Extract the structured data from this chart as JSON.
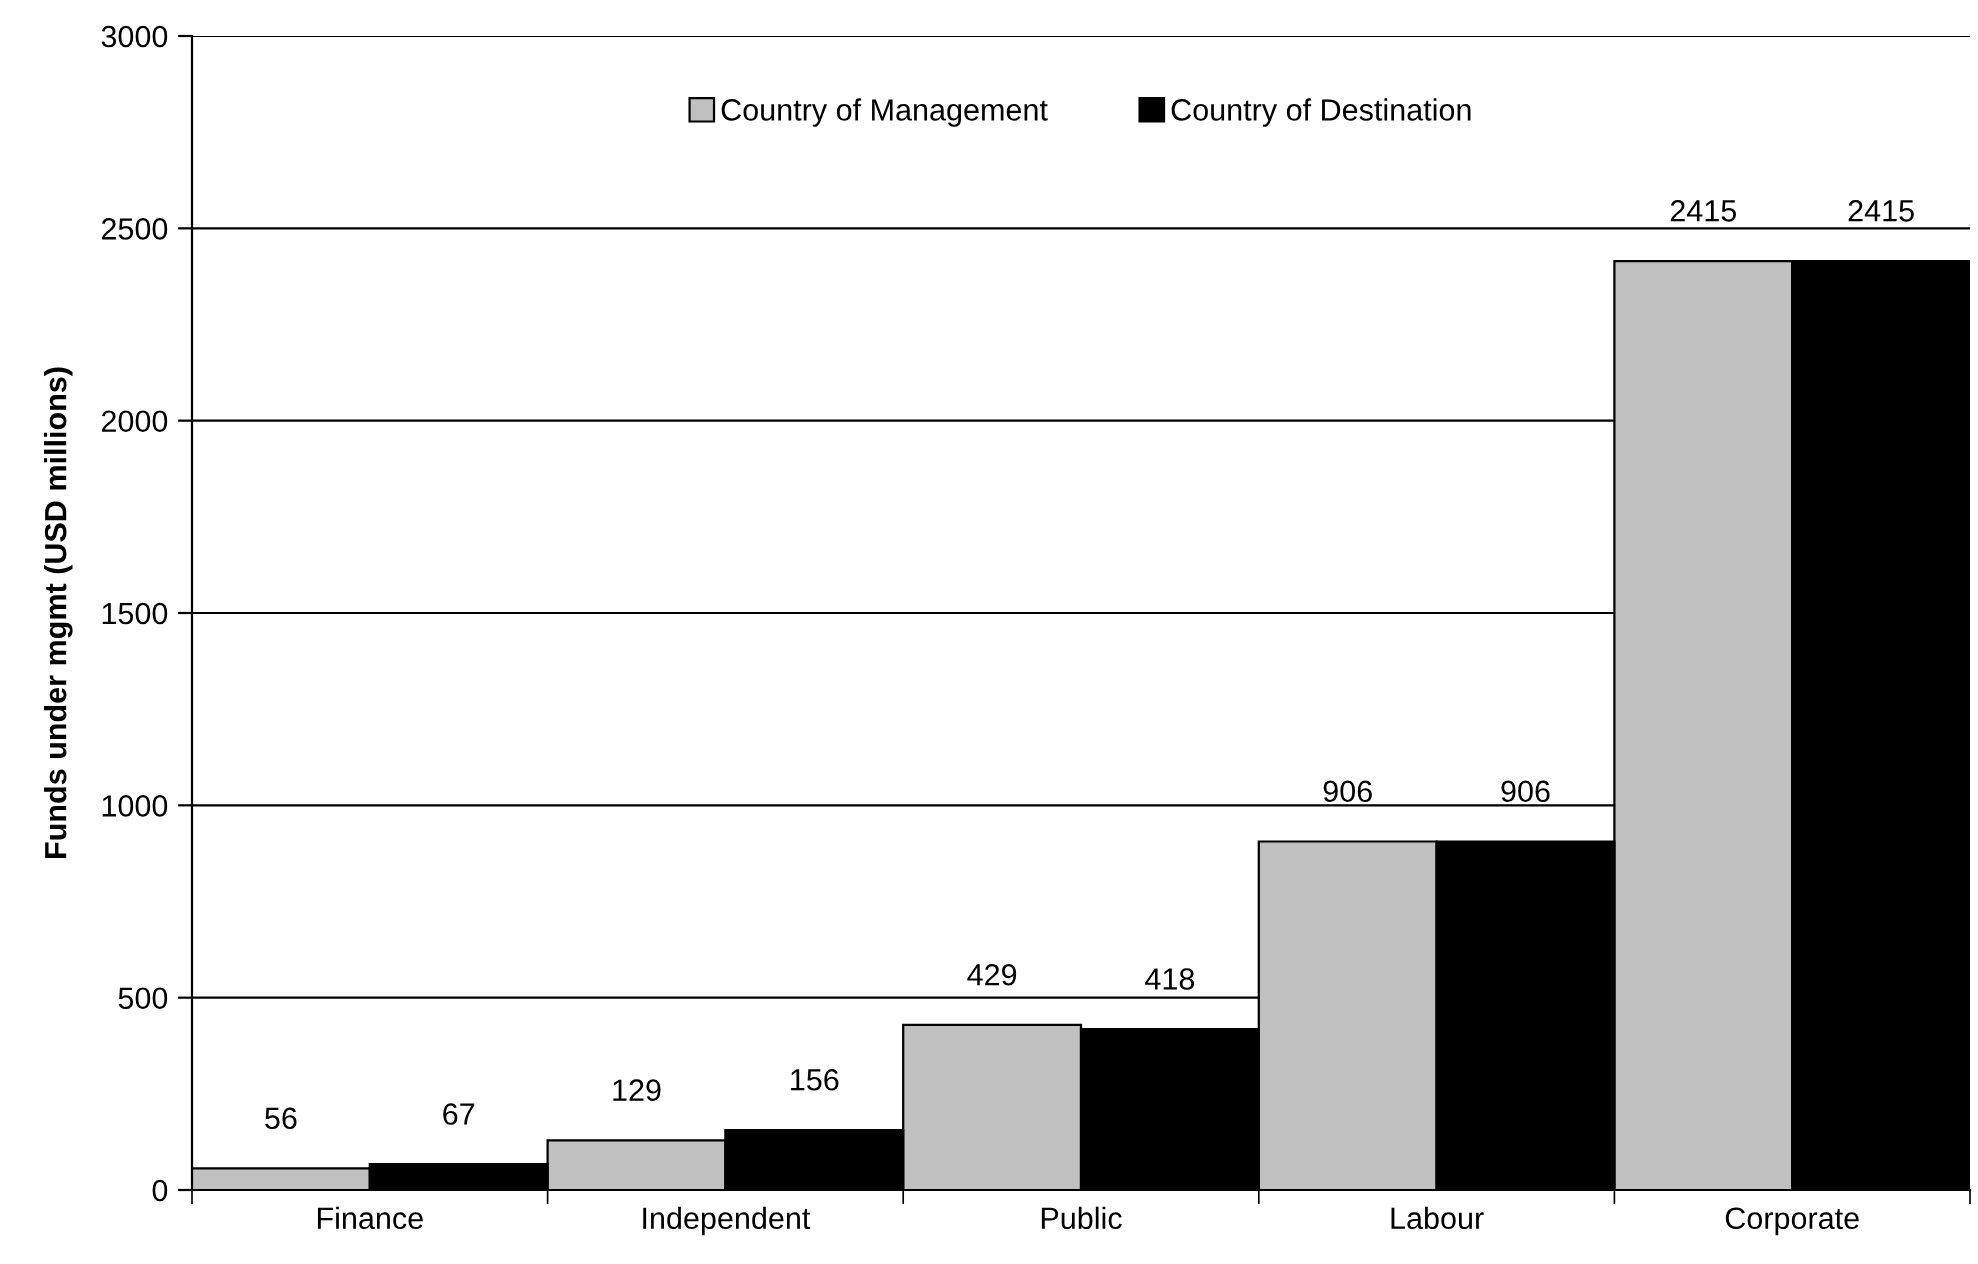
{
  "chart_data": {
    "type": "bar",
    "ylabel": "Funds under mgmt (USD millions)",
    "categories": [
      "Finance",
      "Independent",
      "Public",
      "Labour",
      "Corporate"
    ],
    "series": [
      {
        "name": "Country of Management",
        "color": "#c0c0c0",
        "values": [
          56,
          129,
          429,
          906,
          2415
        ]
      },
      {
        "name": "Country of Destination",
        "color": "#000000",
        "values": [
          67,
          156,
          418,
          906,
          2415
        ]
      }
    ],
    "ylim": [
      0,
      3000
    ],
    "yticks": [
      0,
      500,
      1000,
      1500,
      2000,
      2500,
      3000
    ],
    "grid": "y",
    "legend": "top",
    "data_labels": true
  }
}
